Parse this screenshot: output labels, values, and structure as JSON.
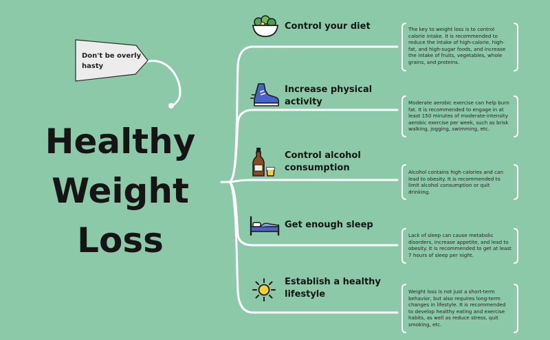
{
  "title": {
    "lines": [
      "Healthy",
      "Weight",
      "Loss"
    ]
  },
  "tag": {
    "text": "Don't be overly hasty"
  },
  "topics": [
    {
      "title": "Control your diet",
      "icon": "salad-bowl-icon",
      "note": "The key to weight loss is to control calorie intake. It is recommended to reduce the intake of high-calorie, high-fat, and high-sugar foods, and increase the intake of fruits, vegetables, whole grains, and proteins."
    },
    {
      "title": "Increase physical activity",
      "icon": "running-shoe-icon",
      "note": "Moderate aerobic exercise can help burn fat. It is recommended to engage in at least 150 minutes of moderate-intensity aerobic exercise per week, such as brisk walking, jogging, swimming, etc."
    },
    {
      "title": "Control alcohol consumption",
      "icon": "beer-bottle-icon",
      "note": "Alcohol contains high calories and can lead to obesity. It is recommended to limit alcohol consumption or quit drinking."
    },
    {
      "title": "Get enough sleep",
      "icon": "bed-icon",
      "note": "Lack of sleep can cause metabolic disorders, increase appetite, and lead to obesity. It is recommended to get at least 7 hours of sleep per night."
    },
    {
      "title": "Establish a healthy lifestyle",
      "icon": "sun-icon",
      "note": "Weight loss is not just a short-term behavior, but also requires long-term changes in lifestyle. It is recommended to develop healthy eating and exercise habits, as well as reduce stress, quit smoking, etc."
    }
  ],
  "colors": {
    "background": "#8cc9a8",
    "line": "#ffffff",
    "ink": "#151515",
    "tag_fill": "#ececec"
  }
}
